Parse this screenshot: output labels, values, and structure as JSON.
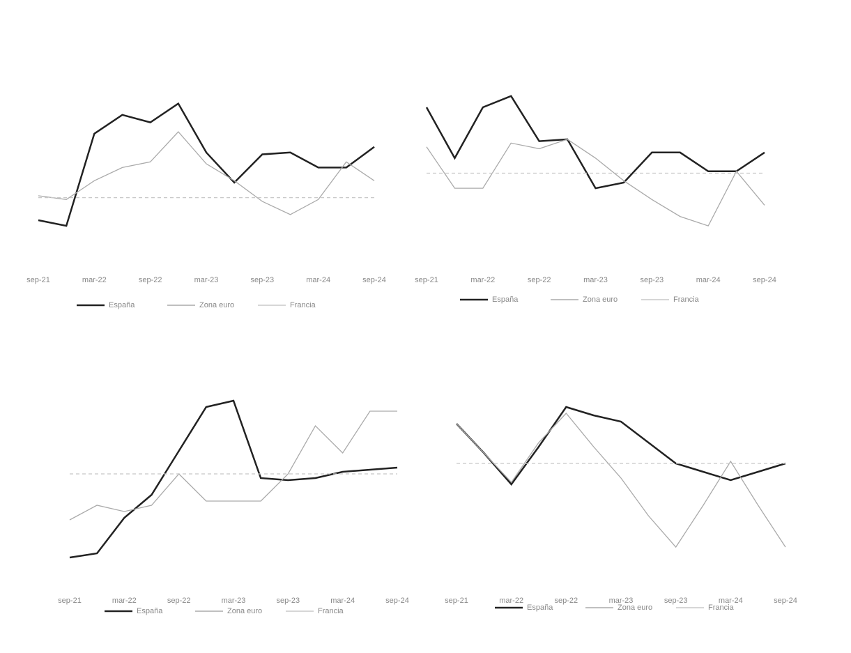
{
  "chart_data": [
    {
      "type": "line",
      "categories": [
        "sep-21",
        null,
        "mar-22",
        null,
        "sep-22",
        null,
        "mar-23",
        null,
        "sep-23",
        null,
        "mar-24",
        null,
        "sep-24"
      ],
      "ylim": [
        0,
        10
      ],
      "series": [
        {
          "name": "España",
          "color": "#222222",
          "values": [
            2.0,
            1.7,
            6.6,
            7.6,
            7.2,
            8.2,
            5.6,
            4.0,
            5.5,
            5.6,
            4.8,
            4.8,
            5.9
          ]
        },
        {
          "name": "Zona euro",
          "color": "#aaaaaa",
          "values": [
            3.3,
            3.1,
            4.1,
            4.8,
            5.1,
            6.7,
            5.0,
            4.1,
            3.0,
            2.3,
            3.1,
            5.1,
            4.1
          ]
        },
        {
          "name": "Francia",
          "color": "#c8c8c8",
          "values": [
            3.2,
            3.2,
            3.2,
            3.2,
            3.2,
            3.2,
            3.2,
            3.2,
            3.2,
            3.2,
            3.2,
            3.2,
            3.2
          ]
        }
      ]
    },
    {
      "type": "line",
      "categories": [
        "sep-21",
        null,
        "mar-22",
        null,
        "sep-22",
        null,
        "mar-23",
        null,
        "sep-23",
        null,
        "mar-24",
        null,
        "sep-24"
      ],
      "ylim": [
        0,
        10
      ],
      "series": [
        {
          "name": "España",
          "color": "#222222",
          "values": [
            8.0,
            5.3,
            8.0,
            8.6,
            6.2,
            6.3,
            3.7,
            4.0,
            5.6,
            5.6,
            4.6,
            4.6,
            5.6
          ]
        },
        {
          "name": "Zona euro",
          "color": "#aaaaaa",
          "values": [
            5.9,
            3.7,
            3.7,
            6.1,
            5.8,
            6.3,
            5.3,
            4.1,
            3.1,
            2.2,
            1.7,
            4.6,
            2.8
          ]
        },
        {
          "name": "Francia",
          "color": "#c8c8c8",
          "values": [
            4.5,
            4.5,
            4.5,
            4.5,
            4.5,
            4.5,
            4.5,
            4.5,
            4.5,
            4.5,
            4.5,
            4.5,
            4.5
          ]
        }
      ]
    },
    {
      "type": "line",
      "categories": [
        "sep-21",
        null,
        "mar-22",
        null,
        "sep-22",
        null,
        "mar-23",
        null,
        "sep-23",
        null,
        "mar-24",
        null,
        "sep-24"
      ],
      "ylim": [
        0,
        10
      ],
      "series": [
        {
          "name": "España",
          "color": "#222222",
          "values": [
            1.0,
            1.2,
            2.9,
            4.0,
            6.1,
            8.2,
            8.5,
            4.8,
            4.7,
            4.8,
            5.1,
            5.2,
            5.3
          ]
        },
        {
          "name": "Zona euro",
          "color": "#aaaaaa",
          "values": [
            2.8,
            3.5,
            3.2,
            3.5,
            5.0,
            3.7,
            3.7,
            3.7,
            5.0,
            7.3,
            6.0,
            8.0,
            8.0
          ]
        },
        {
          "name": "Francia",
          "color": "#c8c8c8",
          "values": [
            5.0,
            5.0,
            5.0,
            5.0,
            5.0,
            5.0,
            5.0,
            5.0,
            5.0,
            5.0,
            5.0,
            5.0,
            5.0
          ]
        }
      ]
    },
    {
      "type": "line",
      "categories": [
        "sep-21",
        null,
        "mar-22",
        null,
        "sep-22",
        null,
        "mar-23",
        null,
        "sep-23",
        null,
        "mar-24",
        null,
        "sep-24"
      ],
      "ylim": [
        0,
        10
      ],
      "series": [
        {
          "name": "España",
          "color": "#222222",
          "values": [
            7.4,
            6.0,
            4.5,
            6.3,
            8.2,
            7.8,
            7.5,
            6.5,
            5.5,
            5.1,
            4.7,
            5.1,
            5.5
          ]
        },
        {
          "name": "Zona euro",
          "color": "#aaaaaa",
          "values": [
            7.4,
            6.0,
            4.6,
            6.5,
            7.9,
            6.3,
            4.8,
            3.0,
            1.5,
            3.5,
            5.6,
            3.5,
            1.5
          ]
        },
        {
          "name": "Francia",
          "color": "#c8c8c8",
          "values": [
            5.5,
            5.5,
            5.5,
            5.5,
            5.5,
            5.5,
            5.5,
            5.5,
            5.5,
            5.5,
            5.5,
            5.5,
            5.5
          ]
        }
      ]
    }
  ]
}
